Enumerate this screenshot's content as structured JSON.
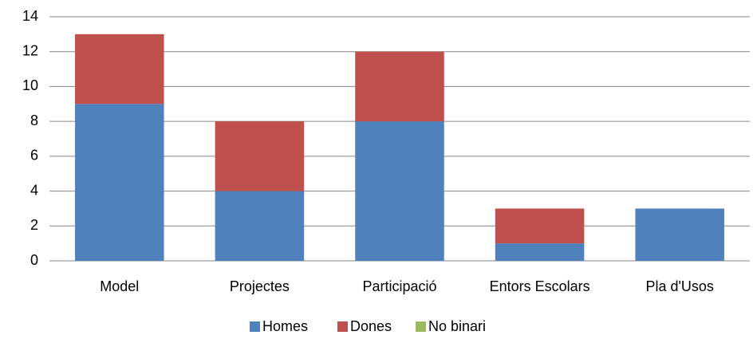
{
  "chart_data": {
    "type": "stacked_bar",
    "categories": [
      "Model",
      "Projectes",
      "Participació",
      "Entors Escolars",
      "Pla d'Usos"
    ],
    "series": [
      {
        "name": "Homes",
        "color": "#4f81bd",
        "values": [
          9,
          4,
          8,
          1,
          3
        ]
      },
      {
        "name": "Dones",
        "color": "#c0504d",
        "values": [
          4,
          4,
          4,
          2,
          0
        ]
      },
      {
        "name": "No binari",
        "color": "#9bbb59",
        "values": [
          0,
          0,
          0,
          0,
          0
        ]
      }
    ],
    "ylim": [
      0,
      14
    ],
    "yticks": [
      0,
      2,
      4,
      6,
      8,
      10,
      12,
      14
    ],
    "grid": true,
    "legend": "bottom"
  }
}
